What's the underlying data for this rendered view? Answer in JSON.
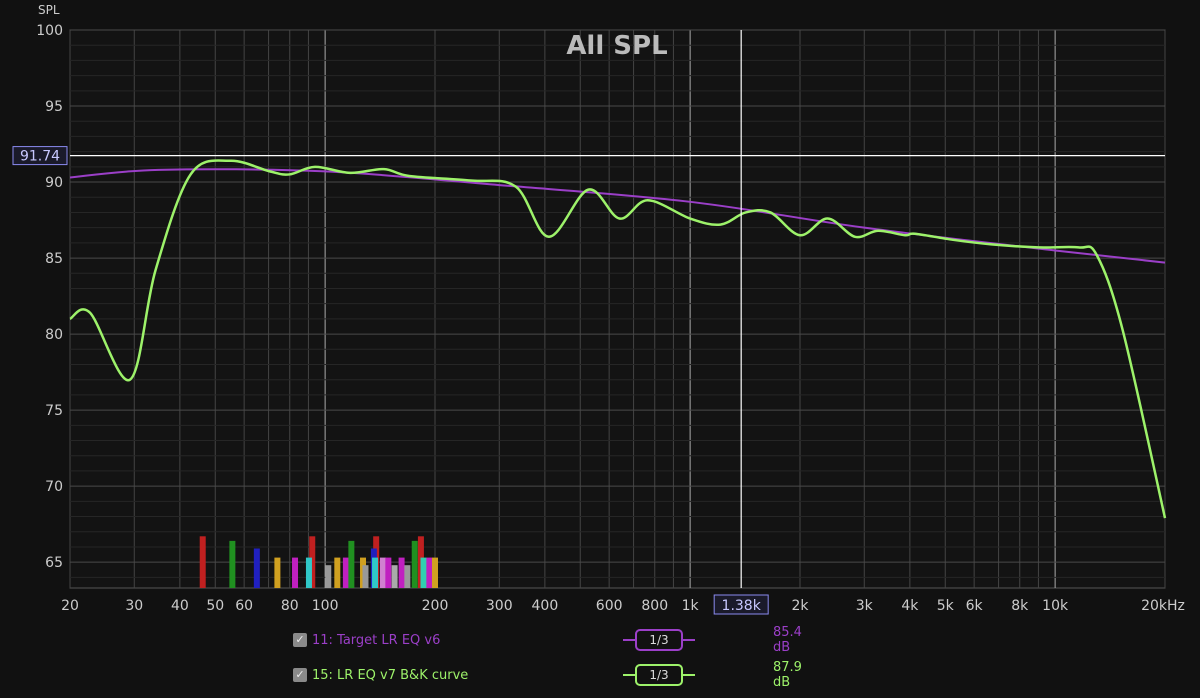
{
  "chart_data": {
    "type": "line",
    "title": "All SPL",
    "ylabel": "SPL",
    "xlabel": "",
    "x_scale": "log",
    "xlim": [
      20,
      20000
    ],
    "ylim": [
      63.3,
      100
    ],
    "grid": true,
    "x_tick_labels": [
      {
        "f": 20,
        "t": "20"
      },
      {
        "f": 30,
        "t": "30"
      },
      {
        "f": 40,
        "t": "40"
      },
      {
        "f": 50,
        "t": "50"
      },
      {
        "f": 60,
        "t": "60"
      },
      {
        "f": 80,
        "t": "80"
      },
      {
        "f": 100,
        "t": "100"
      },
      {
        "f": 200,
        "t": "200"
      },
      {
        "f": 300,
        "t": "300"
      },
      {
        "f": 400,
        "t": "400"
      },
      {
        "f": 600,
        "t": "600"
      },
      {
        "f": 800,
        "t": "800"
      },
      {
        "f": 1000,
        "t": "1k"
      },
      {
        "f": 2000,
        "t": "2k"
      },
      {
        "f": 3000,
        "t": "3k"
      },
      {
        "f": 4000,
        "t": "4k"
      },
      {
        "f": 5000,
        "t": "5k"
      },
      {
        "f": 6000,
        "t": "6k"
      },
      {
        "f": 8000,
        "t": "8k"
      },
      {
        "f": 10000,
        "t": "10k"
      },
      {
        "f": 20000,
        "t": "20kHz"
      }
    ],
    "y_ticks": [
      65,
      70,
      75,
      80,
      85,
      90,
      95,
      100
    ],
    "cursor": {
      "freq": 1380,
      "freq_label": "1.38k",
      "spl": 91.74,
      "spl_label": "91.74"
    },
    "series": [
      {
        "name": "11: Target LR EQ v6",
        "color": "#9b3fc8",
        "smoothing": "1/3",
        "value_label": "85.4 dB",
        "x": [
          20,
          35,
          100,
          300,
          1000,
          3000,
          10000,
          20000
        ],
        "y": [
          90.3,
          90.8,
          90.7,
          89.8,
          88.7,
          87.0,
          85.5,
          84.7
        ]
      },
      {
        "name": "15: LR EQ v7 B&K  curve",
        "color": "#9df26a",
        "smoothing": "1/3",
        "value_label": "87.9 dB",
        "x": [
          20,
          22.7,
          29.2,
          34.3,
          42.8,
          55,
          70.5,
          79.8,
          93.8,
          117,
          145,
          170,
          250,
          333,
          410,
          526,
          640,
          765,
          1000,
          1210,
          1420,
          1660,
          2000,
          2380,
          2830,
          3270,
          3880,
          4130,
          5250,
          6700,
          9000,
          11600,
          13000,
          15300,
          20000
        ],
        "y": [
          81.0,
          81.4,
          77.0,
          84.2,
          90.5,
          91.4,
          90.7,
          90.5,
          91.0,
          90.6,
          90.85,
          90.4,
          90.1,
          89.7,
          86.4,
          89.5,
          87.6,
          88.8,
          87.6,
          87.2,
          88.0,
          88.0,
          86.5,
          87.6,
          86.4,
          86.8,
          86.5,
          86.6,
          86.2,
          85.9,
          85.7,
          85.7,
          85.2,
          80.3,
          67.9
        ]
      }
    ],
    "filter_markers": [
      {
        "f": 46.2,
        "top": 66.7,
        "color": "#c02020"
      },
      {
        "f": 55.7,
        "top": 66.4,
        "color": "#209020"
      },
      {
        "f": 65,
        "top": 65.9,
        "color": "#2020c0"
      },
      {
        "f": 74,
        "top": 65.3,
        "color": "#d0a020"
      },
      {
        "f": 82.7,
        "top": 65.3,
        "color": "#c020c0"
      },
      {
        "f": 92.2,
        "top": 66.7,
        "color": "#c02020"
      },
      {
        "f": 90.3,
        "top": 65.3,
        "color": "#30c8c8"
      },
      {
        "f": 102,
        "top": 64.8,
        "color": "#999999"
      },
      {
        "f": 108,
        "top": 65.3,
        "color": "#d0a020"
      },
      {
        "f": 114,
        "top": 65.3,
        "color": "#c020c0"
      },
      {
        "f": 118,
        "top": 66.4,
        "color": "#209020"
      },
      {
        "f": 127,
        "top": 65.3,
        "color": "#d0a020"
      },
      {
        "f": 129,
        "top": 64.8,
        "color": "#999999"
      },
      {
        "f": 138,
        "top": 66.7,
        "color": "#c02020"
      },
      {
        "f": 136,
        "top": 65.9,
        "color": "#2020c0"
      },
      {
        "f": 137,
        "top": 65.3,
        "color": "#30c8c8"
      },
      {
        "f": 144,
        "top": 65.3,
        "color": "#d080d0"
      },
      {
        "f": 149,
        "top": 65.3,
        "color": "#c020c0"
      },
      {
        "f": 155,
        "top": 64.8,
        "color": "#aaaaaa"
      },
      {
        "f": 162,
        "top": 65.3,
        "color": "#c020c0"
      },
      {
        "f": 168,
        "top": 64.8,
        "color": "#999999"
      },
      {
        "f": 176,
        "top": 66.4,
        "color": "#209020"
      },
      {
        "f": 183,
        "top": 66.7,
        "color": "#c02020"
      },
      {
        "f": 186,
        "top": 65.3,
        "color": "#30d0b0"
      },
      {
        "f": 193,
        "top": 65.3,
        "color": "#c020c0"
      },
      {
        "f": 200,
        "top": 65.3,
        "color": "#d0a020"
      }
    ]
  }
}
